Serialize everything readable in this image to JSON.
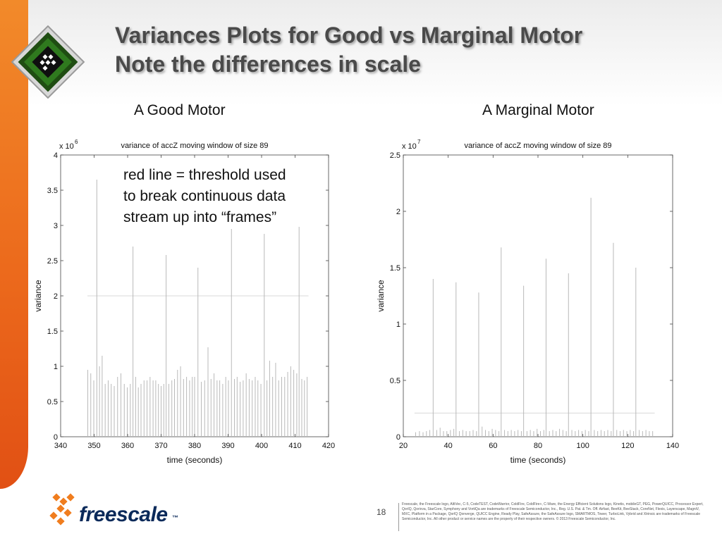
{
  "slide": {
    "title_line1": "Variances Plots for Good vs Marginal Motor",
    "title_line2": "Note the differences in scale",
    "left_heading": "A Good Motor",
    "right_heading": "A Marginal Motor",
    "annotation_lines": [
      "red line = threshold used",
      "to break continuous data",
      "stream up into “frames”"
    ],
    "page_number": "18",
    "logo_text": "freescale",
    "logo_tm": "™",
    "legal_text": "Freescale, the Freescale logo, AltiVec, C-5, CodeTEST, CodeWarrior, ColdFire, ColdFire+, C-Ware, the Energy Efficient Solutions logo, Kinetis, mobileGT, PEG, PowerQUICC, Processor Expert, QorIQ, Qorivva, StarCore, Symphony and VortiQa are trademarks of Freescale Semiconductor, Inc., Reg. U.S. Pat. & Tm. Off. Airfast, BeeKit, BeeStack, CoreNet, Flexis, Layerscape, MagniV, MXC, Platform in a Package, QorIQ Qonverge, QUICC Engine, Ready Play, SafeAssure, the SafeAssure logo, SMARTMOS, Tower, TurboLink, Vybrid and Xtrinsic are trademarks of Freescale Semiconductor, Inc. All other product or service names are the property of their respective owners. © 2013 Freescale Semiconductor, Inc.",
    "colors": {
      "orange_bar": "#ec6a1c",
      "title_text": "#4a4a4a",
      "plot_line": "#b9b9b9",
      "threshold_line": "#d8d8d8",
      "logo_blue": "#0b2a5a"
    },
    "icons": [
      "chip-icon",
      "freescale-logo-icon"
    ]
  },
  "chart_data": [
    {
      "type": "line",
      "title": "variance of accZ moving window of size 89",
      "xlabel": "time (seconds)",
      "ylabel": "variance",
      "scale_label": "x 10",
      "scale_exponent": "6",
      "xlim": [
        340,
        420
      ],
      "ylim": [
        0,
        4
      ],
      "x_ticks": [
        340,
        350,
        360,
        370,
        380,
        390,
        400,
        410,
        420
      ],
      "x_tick_labels": [
        "340",
        "350",
        "360",
        "370",
        "380",
        "390",
        "400",
        "410",
        "420"
      ],
      "y_ticks": [
        0,
        0.5,
        1,
        1.5,
        2,
        2.5,
        3,
        3.5,
        4
      ],
      "y_tick_labels": [
        "0",
        "0.5",
        "1",
        "1.5",
        "2",
        "2.5",
        "3",
        "3.5",
        "4"
      ],
      "threshold": {
        "value": 2.0,
        "x_start": 348,
        "x_end": 414
      },
      "grid": false,
      "series": [
        {
          "spikes": [
            [
              348.1,
              0.95
            ],
            [
              349.0,
              0.9
            ],
            [
              349.9,
              0.8
            ],
            [
              350.8,
              3.65
            ],
            [
              351.6,
              1.0
            ],
            [
              352.4,
              1.15
            ],
            [
              353.3,
              0.75
            ],
            [
              354.2,
              0.8
            ],
            [
              355.1,
              0.75
            ],
            [
              356.0,
              0.72
            ],
            [
              357.0,
              0.85
            ],
            [
              358.0,
              0.9
            ],
            [
              359.0,
              0.75
            ],
            [
              359.9,
              0.7
            ],
            [
              360.8,
              0.75
            ],
            [
              361.6,
              2.7
            ],
            [
              362.4,
              0.85
            ],
            [
              363.2,
              0.7
            ],
            [
              364.0,
              0.75
            ],
            [
              364.9,
              0.8
            ],
            [
              365.8,
              0.8
            ],
            [
              366.7,
              0.85
            ],
            [
              367.6,
              0.8
            ],
            [
              368.4,
              0.8
            ],
            [
              369.2,
              0.75
            ],
            [
              370.0,
              0.72
            ],
            [
              370.8,
              0.75
            ],
            [
              371.5,
              2.58
            ],
            [
              372.3,
              0.75
            ],
            [
              373.2,
              0.8
            ],
            [
              374.0,
              0.82
            ],
            [
              374.9,
              0.95
            ],
            [
              375.8,
              1.0
            ],
            [
              376.7,
              0.82
            ],
            [
              377.6,
              0.85
            ],
            [
              378.5,
              0.8
            ],
            [
              379.3,
              0.85
            ],
            [
              380.0,
              0.85
            ],
            [
              381.0,
              2.4
            ],
            [
              382.0,
              0.78
            ],
            [
              383.0,
              0.8
            ],
            [
              384.0,
              1.27
            ],
            [
              384.9,
              0.82
            ],
            [
              385.8,
              0.9
            ],
            [
              386.7,
              0.8
            ],
            [
              387.5,
              0.8
            ],
            [
              388.4,
              0.75
            ],
            [
              389.3,
              0.85
            ],
            [
              390.1,
              0.8
            ],
            [
              391.0,
              2.95
            ],
            [
              391.9,
              0.82
            ],
            [
              392.7,
              0.85
            ],
            [
              393.6,
              0.78
            ],
            [
              394.5,
              0.8
            ],
            [
              395.4,
              0.9
            ],
            [
              396.3,
              0.82
            ],
            [
              397.2,
              0.8
            ],
            [
              398.1,
              0.85
            ],
            [
              398.9,
              0.8
            ],
            [
              399.8,
              0.75
            ],
            [
              400.8,
              2.88
            ],
            [
              401.6,
              0.8
            ],
            [
              402.4,
              1.08
            ],
            [
              403.3,
              0.85
            ],
            [
              404.2,
              1.05
            ],
            [
              405.1,
              0.8
            ],
            [
              406.0,
              0.85
            ],
            [
              406.9,
              0.85
            ],
            [
              407.8,
              0.92
            ],
            [
              408.7,
              1.0
            ],
            [
              409.6,
              0.95
            ],
            [
              410.5,
              0.9
            ],
            [
              411.2,
              2.98
            ],
            [
              412.0,
              0.82
            ],
            [
              412.8,
              0.8
            ],
            [
              413.6,
              0.85
            ]
          ]
        }
      ]
    },
    {
      "type": "line",
      "title": "variance of accZ moving window of size 89",
      "xlabel": "time (seconds)",
      "ylabel": "variance",
      "scale_label": "x 10",
      "scale_exponent": "7",
      "xlim": [
        20,
        140
      ],
      "ylim": [
        0,
        2.5
      ],
      "x_ticks": [
        20,
        40,
        60,
        80,
        100,
        120,
        140
      ],
      "x_tick_labels": [
        "20",
        "40",
        "60",
        "80",
        "100",
        "120",
        "140"
      ],
      "y_ticks": [
        0,
        0.5,
        1,
        1.5,
        2,
        2.5
      ],
      "y_tick_labels": [
        "0",
        "0.5",
        "1",
        "1.5",
        "2",
        "2.5"
      ],
      "threshold": {
        "value": 0.21,
        "x_start": 25,
        "x_end": 132
      },
      "grid": false,
      "series": [
        {
          "spikes": [
            [
              25.5,
              0.04
            ],
            [
              27.2,
              0.05
            ],
            [
              28.8,
              0.04
            ],
            [
              30.3,
              0.05
            ],
            [
              31.8,
              0.06
            ],
            [
              33.3,
              1.4
            ],
            [
              34.9,
              0.06
            ],
            [
              36.4,
              0.08
            ],
            [
              37.9,
              0.05
            ],
            [
              39.4,
              0.05
            ],
            [
              41.0,
              0.06
            ],
            [
              42.5,
              0.07
            ],
            [
              43.5,
              1.37
            ],
            [
              45.0,
              0.05
            ],
            [
              46.5,
              0.06
            ],
            [
              48.0,
              0.05
            ],
            [
              49.6,
              0.05
            ],
            [
              51.1,
              0.06
            ],
            [
              52.6,
              0.05
            ],
            [
              53.6,
              1.28
            ],
            [
              55.1,
              0.09
            ],
            [
              56.6,
              0.06
            ],
            [
              58.1,
              0.05
            ],
            [
              59.6,
              0.07
            ],
            [
              61.1,
              0.06
            ],
            [
              62.6,
              0.05
            ],
            [
              63.6,
              1.68
            ],
            [
              65.1,
              0.06
            ],
            [
              66.6,
              0.05
            ],
            [
              68.1,
              0.06
            ],
            [
              69.6,
              0.05
            ],
            [
              71.1,
              0.06
            ],
            [
              72.6,
              0.05
            ],
            [
              73.6,
              1.34
            ],
            [
              75.1,
              0.05
            ],
            [
              76.6,
              0.06
            ],
            [
              78.1,
              0.05
            ],
            [
              79.6,
              0.07
            ],
            [
              81.1,
              0.05
            ],
            [
              82.6,
              0.06
            ],
            [
              83.6,
              1.58
            ],
            [
              85.1,
              0.05
            ],
            [
              86.6,
              0.06
            ],
            [
              88.1,
              0.05
            ],
            [
              89.6,
              0.07
            ],
            [
              91.1,
              0.06
            ],
            [
              92.6,
              0.05
            ],
            [
              93.6,
              1.45
            ],
            [
              95.1,
              0.06
            ],
            [
              96.6,
              0.05
            ],
            [
              98.1,
              0.06
            ],
            [
              99.6,
              0.05
            ],
            [
              101.1,
              0.06
            ],
            [
              102.6,
              0.05
            ],
            [
              103.6,
              2.12
            ],
            [
              105.1,
              0.06
            ],
            [
              106.6,
              0.05
            ],
            [
              108.1,
              0.06
            ],
            [
              109.6,
              0.05
            ],
            [
              111.1,
              0.06
            ],
            [
              112.6,
              0.05
            ],
            [
              113.6,
              1.72
            ],
            [
              115.1,
              0.06
            ],
            [
              116.6,
              0.05
            ],
            [
              118.1,
              0.06
            ],
            [
              119.6,
              0.05
            ],
            [
              121.1,
              0.06
            ],
            [
              122.6,
              0.05
            ],
            [
              123.6,
              1.5
            ],
            [
              125.1,
              0.06
            ],
            [
              126.6,
              0.05
            ],
            [
              128.1,
              0.06
            ],
            [
              129.6,
              0.05
            ],
            [
              131.1,
              0.05
            ]
          ]
        }
      ]
    }
  ]
}
